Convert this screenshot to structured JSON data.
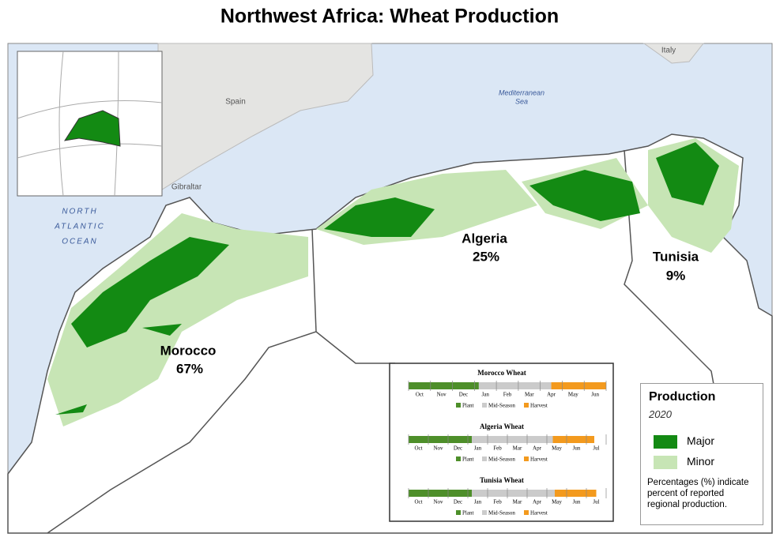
{
  "title": "Northwest Africa: Wheat Production",
  "map": {
    "countries": [
      {
        "name": "Morocco",
        "share": "67%"
      },
      {
        "name": "Algeria",
        "share": "25%"
      },
      {
        "name": "Tunisia",
        "share": "9%"
      }
    ],
    "places": [
      "Spain",
      "Gibraltar",
      "Italy"
    ],
    "sea": [
      "Mediterranean",
      "Sea"
    ],
    "ocean": [
      "NORTH",
      "ATLANTIC",
      "OCEAN"
    ]
  },
  "calendars": [
    {
      "title": "Morocco Wheat",
      "months": [
        "Oct",
        "Nov",
        "Dec",
        "Jan",
        "Feb",
        "Mar",
        "Apr",
        "May",
        "Jun"
      ],
      "segments": [
        {
          "phase": 0,
          "start": 0,
          "end": 3.2
        },
        {
          "phase": 1,
          "start": 3.2,
          "end": 6.5
        },
        {
          "phase": 2,
          "start": 6.5,
          "end": 9
        }
      ]
    },
    {
      "title": "Algeria Wheat",
      "months": [
        "Oct",
        "Nov",
        "Dec",
        "Jan",
        "Feb",
        "Mar",
        "Apr",
        "May",
        "Jun",
        "Jul"
      ],
      "segments": [
        {
          "phase": 0,
          "start": 0,
          "end": 3.2
        },
        {
          "phase": 1,
          "start": 3.2,
          "end": 7.3
        },
        {
          "phase": 2,
          "start": 7.3,
          "end": 9.4
        }
      ]
    },
    {
      "title": "Tunisia Wheat",
      "months": [
        "Oct",
        "Nov",
        "Dec",
        "Jan",
        "Feb",
        "Mar",
        "Apr",
        "May",
        "Jun",
        "Jul"
      ],
      "segments": [
        {
          "phase": 0,
          "start": 0,
          "end": 3.2
        },
        {
          "phase": 1,
          "start": 3.2,
          "end": 7.4
        },
        {
          "phase": 2,
          "start": 7.4,
          "end": 9.5
        }
      ]
    }
  ],
  "phase_legend": [
    {
      "label": "Plant",
      "color": "#4e8f2a"
    },
    {
      "label": "Mid-Season",
      "color": "#cbcbcb"
    },
    {
      "label": "Harvest",
      "color": "#f39a1e"
    }
  ],
  "legend": {
    "title": "Production",
    "year": "2020",
    "items": [
      {
        "label": "Major",
        "color": "#138a13"
      },
      {
        "label": "Minor",
        "color": "#c7e5b5"
      }
    ],
    "note": "Percentages (%) indicate percent of reported regional production."
  }
}
